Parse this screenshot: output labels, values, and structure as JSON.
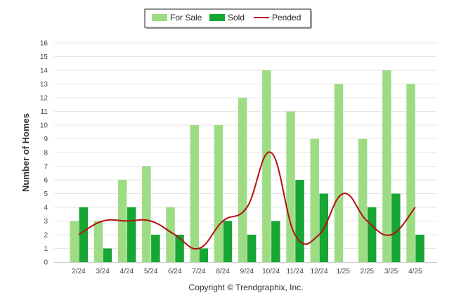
{
  "chart_data": {
    "type": "bar",
    "ylabel": "Number of Homes",
    "ylim": [
      0,
      16
    ],
    "yticks": [
      0,
      1,
      2,
      3,
      4,
      5,
      6,
      7,
      8,
      9,
      10,
      11,
      12,
      13,
      14,
      15,
      16
    ],
    "grid": true,
    "legend_position": "top-center",
    "categories": [
      "2/24",
      "3/24",
      "4/24",
      "5/24",
      "6/24",
      "7/24",
      "8/24",
      "9/24",
      "10/24",
      "11/24",
      "12/24",
      "1/25",
      "2/25",
      "3/25",
      "4/25"
    ],
    "series": [
      {
        "name": "For Sale",
        "type": "bar",
        "color": "#9edc84",
        "values": [
          3,
          3,
          6,
          7,
          4,
          10,
          10,
          12,
          14,
          11,
          9,
          13,
          9,
          14,
          13
        ]
      },
      {
        "name": "Sold",
        "type": "bar",
        "color": "#17a534",
        "values": [
          4,
          1,
          4,
          2,
          2,
          1,
          3,
          2,
          3,
          6,
          5,
          0,
          4,
          5,
          2
        ]
      },
      {
        "name": "Pended",
        "type": "line",
        "color": "#b31010",
        "values": [
          2,
          3,
          3,
          3,
          2,
          1,
          3,
          4,
          8,
          2,
          2,
          5,
          3,
          2,
          4
        ]
      }
    ],
    "copyright": "Copyright © Trendgraphix, Inc."
  }
}
